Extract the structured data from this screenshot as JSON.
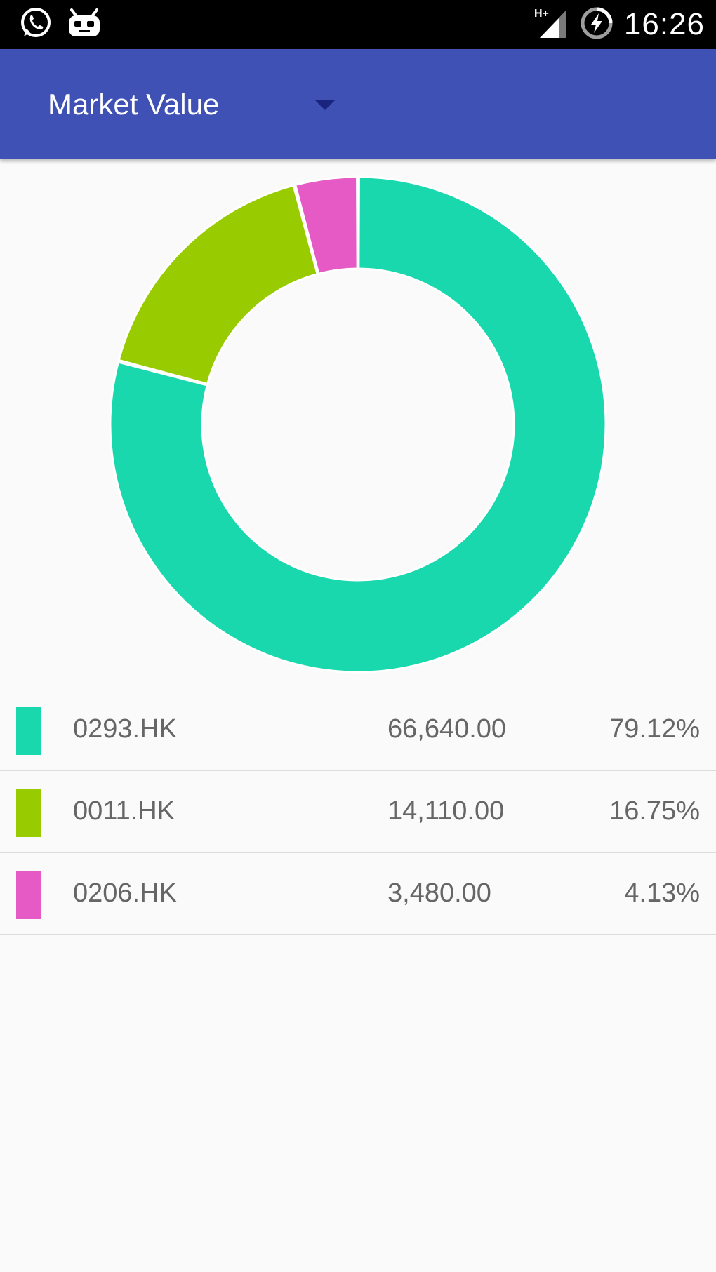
{
  "status_bar": {
    "time": "16:26",
    "left_icons": [
      "whatsapp-icon",
      "cyanogenmod-icon"
    ],
    "right_icons": [
      "hplus-signal-icon",
      "battery-charging-icon"
    ],
    "network_label": "H+"
  },
  "app_bar": {
    "spinner_label": "Market Value"
  },
  "colors": {
    "app_bar": "#3f51b5",
    "teal": "#1ad8ad",
    "green": "#99cc00",
    "pink": "#e55ac4"
  },
  "chart_data": {
    "type": "pie",
    "style": "donut",
    "labels": [
      "0293.HK",
      "0011.HK",
      "0206.HK"
    ],
    "values": [
      66640.0,
      14110.0,
      3480.0
    ],
    "percents": [
      79.12,
      16.75,
      4.13
    ],
    "colors": [
      "#1ad8ad",
      "#99cc00",
      "#e55ac4"
    ]
  },
  "legend": {
    "rows": [
      {
        "symbol": "0293.HK",
        "value": "66,640.00",
        "percent": "79.12%"
      },
      {
        "symbol": "0011.HK",
        "value": "14,110.00",
        "percent": "16.75%"
      },
      {
        "symbol": "0206.HK",
        "value": "3,480.00",
        "percent": "4.13%"
      }
    ]
  }
}
